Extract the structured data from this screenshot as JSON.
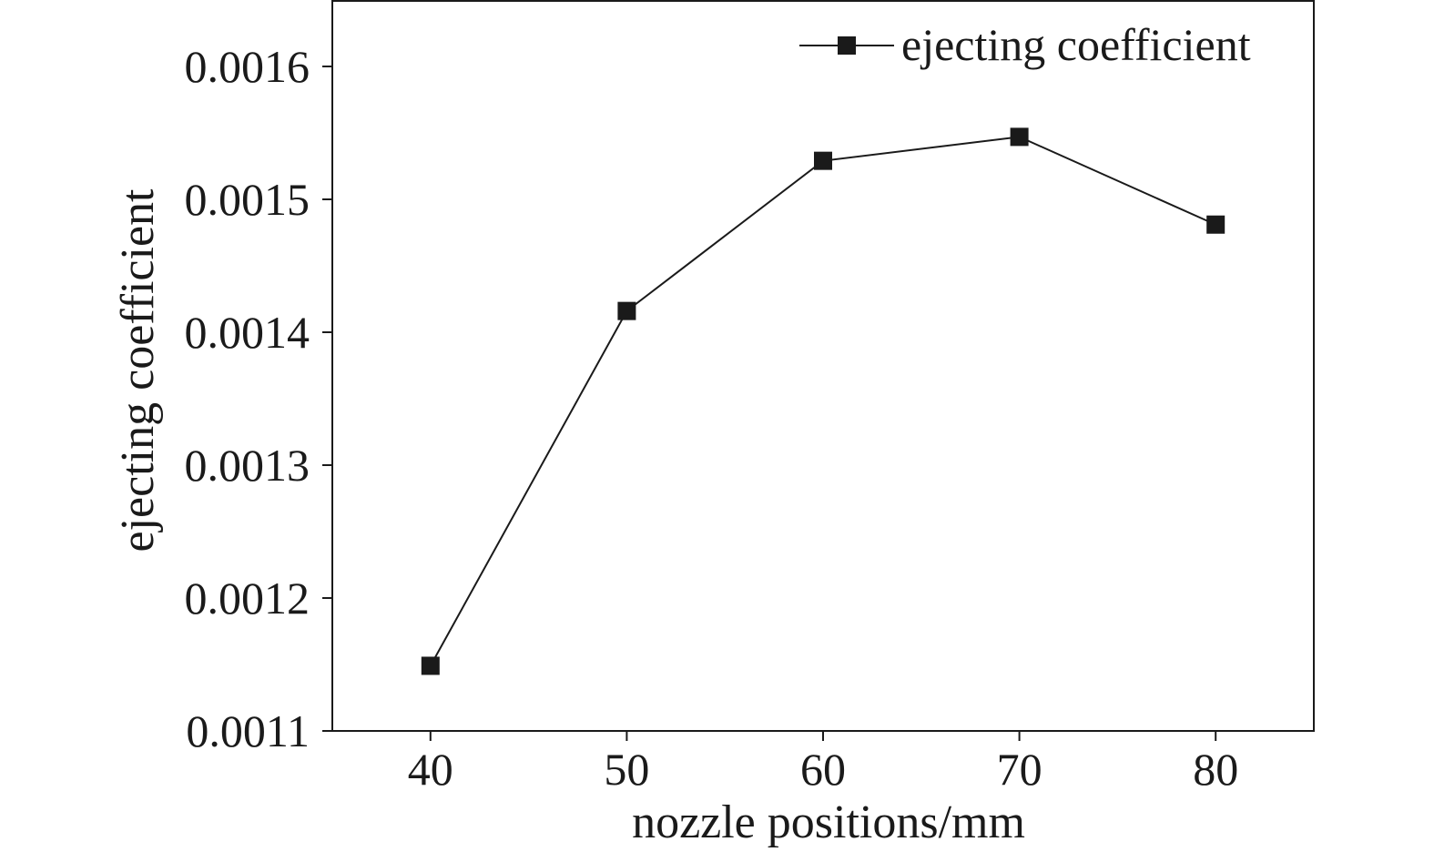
{
  "chart_data": {
    "type": "line",
    "title": "",
    "xlabel": "nozzle positions/mm",
    "ylabel": "ejecting coefficient",
    "xlim": [
      35,
      85
    ],
    "ylim": [
      0.0011,
      0.00165
    ],
    "xticks": [
      40,
      50,
      60,
      70,
      80
    ],
    "xtick_labels": [
      "40",
      "50",
      "60",
      "70",
      "80"
    ],
    "yticks": [
      0.0011,
      0.0012,
      0.0013,
      0.0014,
      0.0015,
      0.0016
    ],
    "ytick_labels": [
      "0.0011",
      "0.0012",
      "0.0013",
      "0.0014",
      "0.0015",
      "0.0016"
    ],
    "grid": false,
    "legend_position": "top-right",
    "marker": "square",
    "series": [
      {
        "name": "ejecting coefficient",
        "color": "#1a1a1a",
        "x": [
          40,
          50,
          60,
          70,
          80
        ],
        "y": [
          0.001149,
          0.001416,
          0.001529,
          0.001547,
          0.001481
        ]
      }
    ]
  }
}
